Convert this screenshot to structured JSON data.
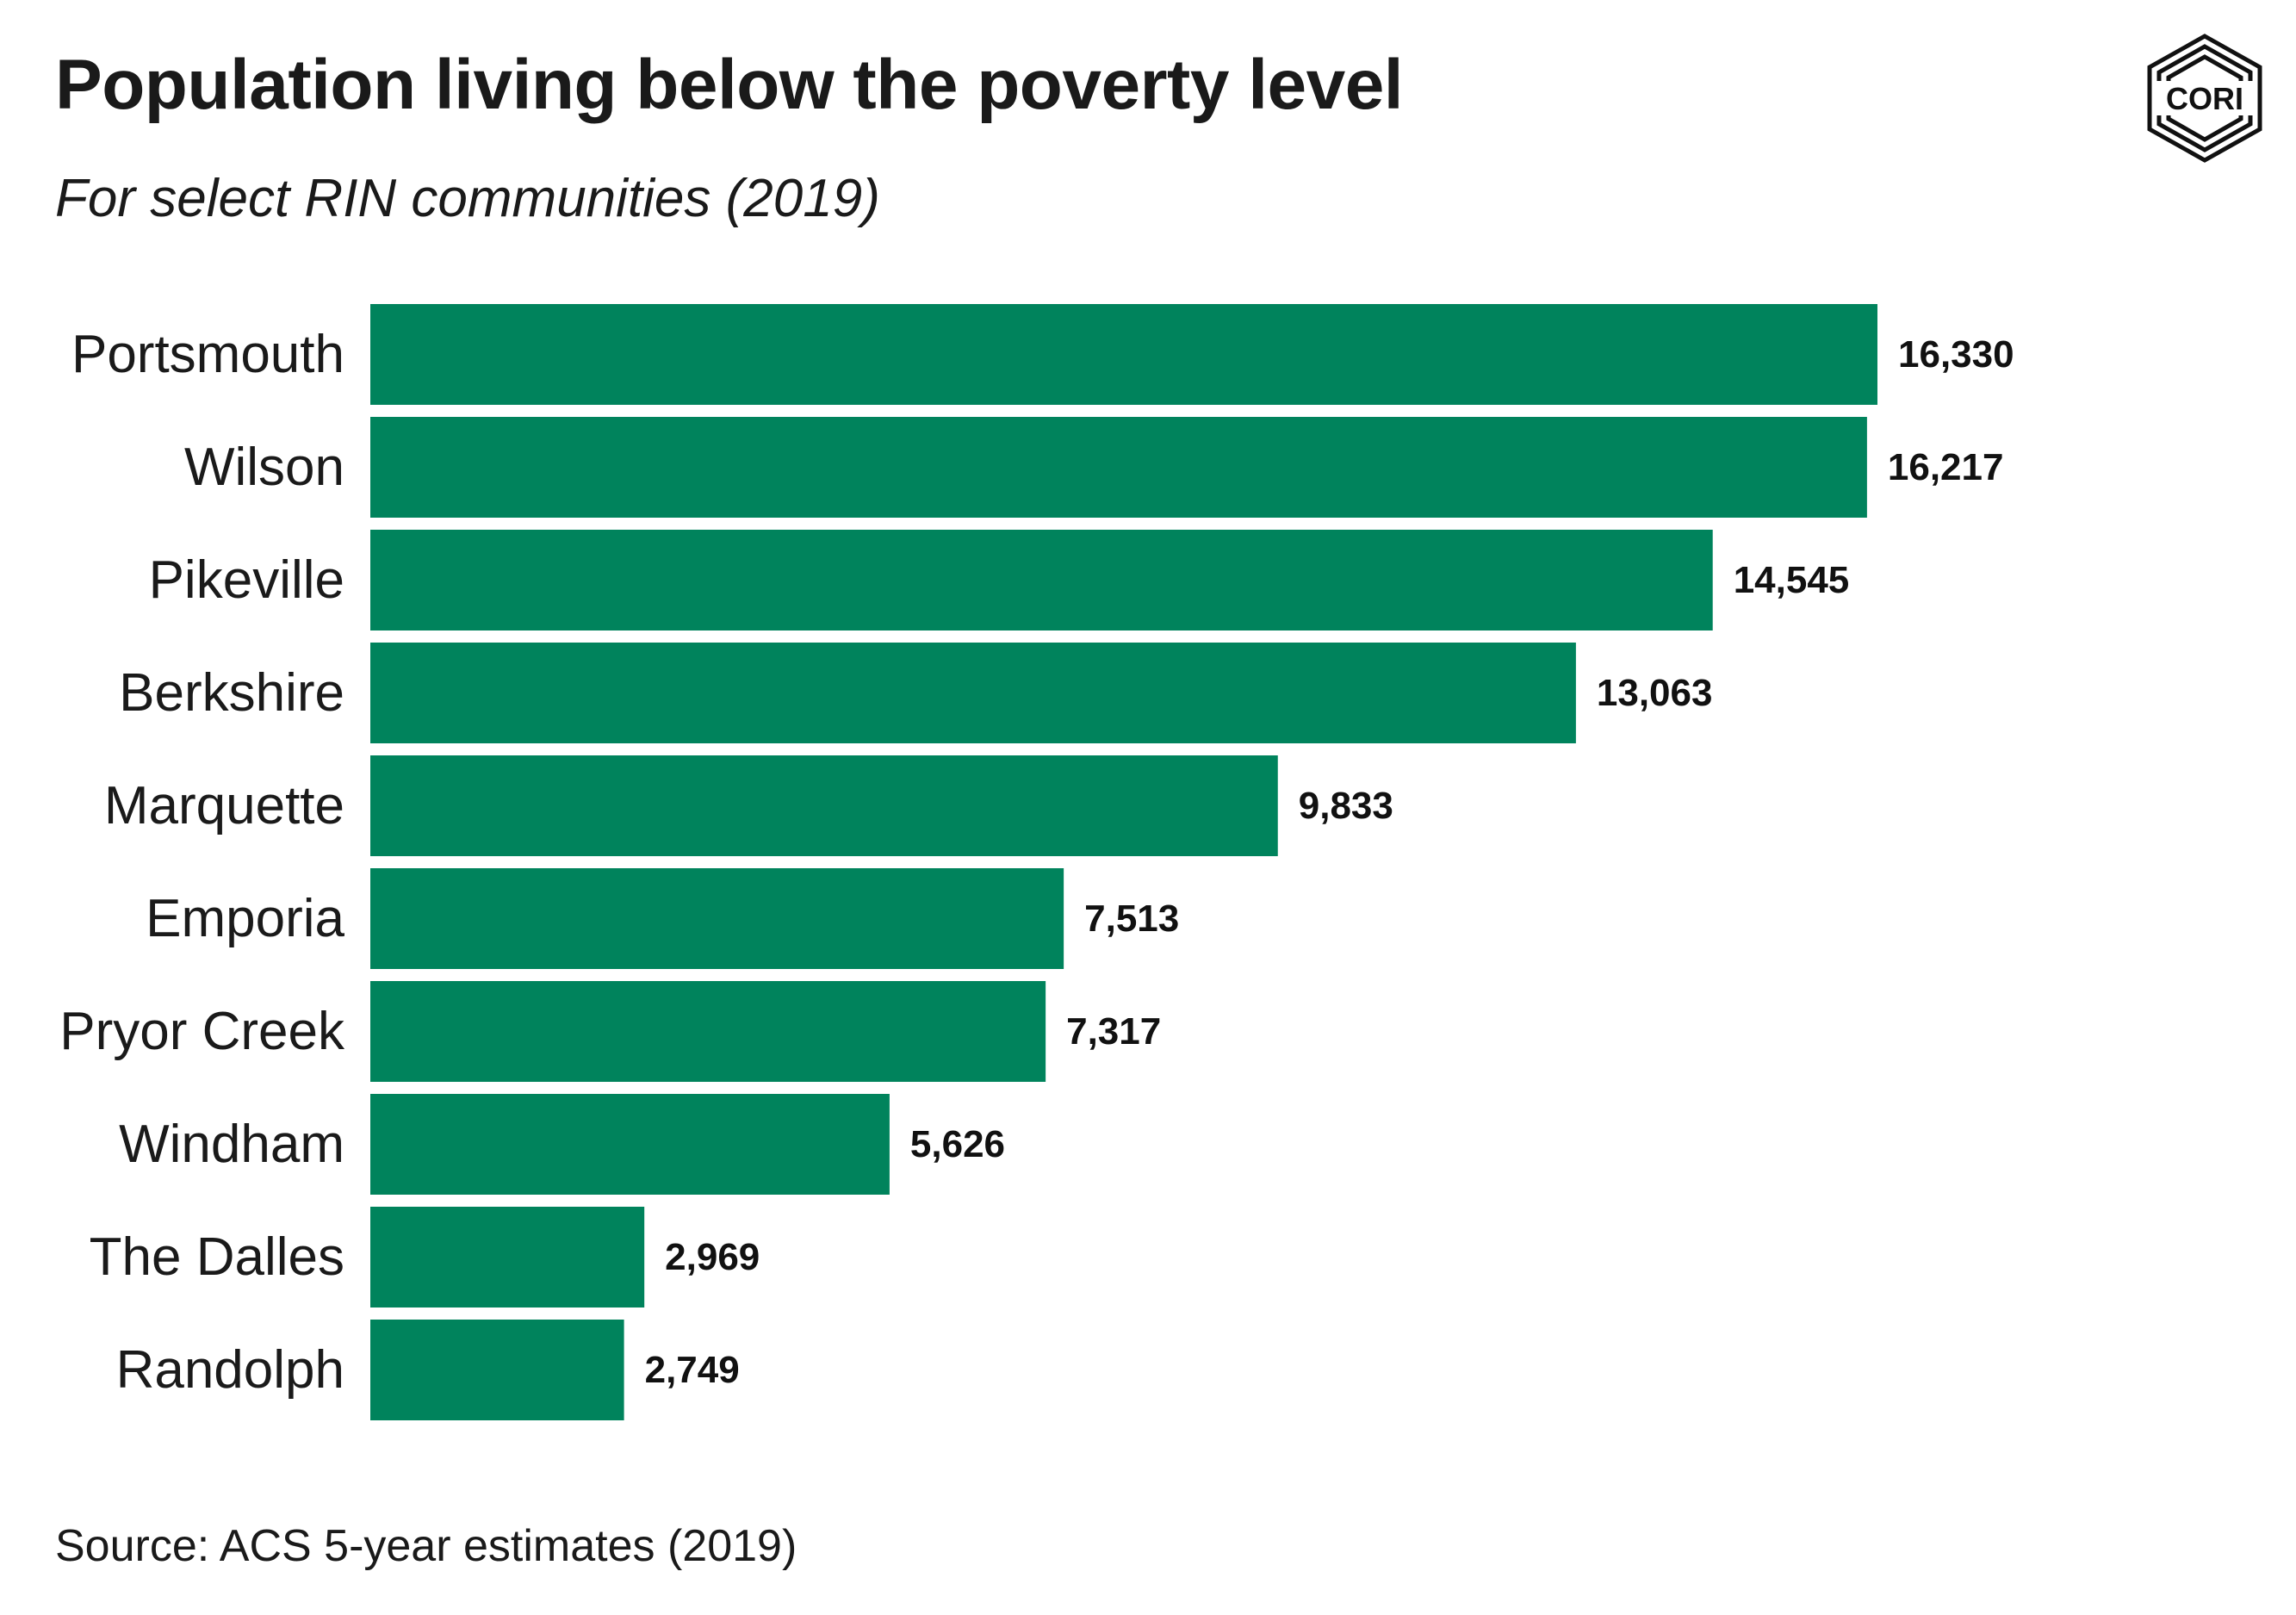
{
  "header": {
    "title": "Population living below the poverty level",
    "subtitle": "For select RIN communities (2019)"
  },
  "logo": {
    "icon": "cori-hexagon-logo",
    "text": "CORI"
  },
  "footer": {
    "source": "Source: ACS 5-year estimates (2019)"
  },
  "colors": {
    "bar": "#00835C",
    "text": "#1a1a1a"
  },
  "chart_data": {
    "type": "bar",
    "orientation": "horizontal",
    "title": "Population living below the poverty level",
    "subtitle": "For select RIN communities (2019)",
    "categories": [
      "Portsmouth",
      "Wilson",
      "Pikeville",
      "Berkshire",
      "Marquette",
      "Emporia",
      "Pryor Creek",
      "Windham",
      "The Dalles",
      "Randolph"
    ],
    "values": [
      16330,
      16217,
      14545,
      13063,
      9833,
      7513,
      7317,
      5626,
      2969,
      2749
    ],
    "value_labels": [
      "16,330",
      "16,217",
      "14,545",
      "13,063",
      "9,833",
      "7,513",
      "7,317",
      "5,626",
      "2,969",
      "2,749"
    ],
    "xlim": [
      0,
      16330
    ],
    "xlabel": "",
    "ylabel": "",
    "grid": false,
    "legend": "none"
  }
}
